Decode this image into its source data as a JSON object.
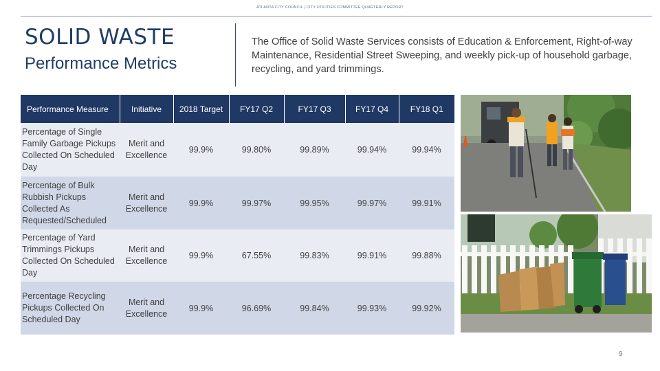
{
  "header": {
    "text": "ATLANTA CITY COUNCIL | CITY UTILITIES COMMITTEE QUARTERLY REPORT"
  },
  "title": "SOLID WASTE",
  "subtitle": "Performance Metrics",
  "description": "The Office of Solid Waste Services consists of Education & Enforcement, Right-of-way Maintenance, Residential Street Sweeping, and weekly pick-up of household garbage, recycling, and yard trimmings.",
  "table": {
    "columns": [
      "Performance Measure",
      "Initiative",
      "2018 Target",
      "FY17 Q2",
      "FY17 Q3",
      "FY17 Q4",
      "FY18 Q1"
    ],
    "rows": [
      {
        "measure": "Percentage of Single Family Garbage Pickups Collected On Scheduled Day",
        "initiative": "Merit and Excellence",
        "target": "99.9%",
        "fy17q2": "99.80%",
        "fy17q3": "99.89%",
        "fy17q4": "99.94%",
        "fy18q1": "99.94%"
      },
      {
        "measure": "Percentage of Bulk Rubbish Pickups Collected As Requested/Scheduled",
        "initiative": "Merit and Excellence",
        "target": "99.9%",
        "fy17q2": "99.97%",
        "fy17q3": "99.95%",
        "fy17q4": "99.97%",
        "fy18q1": "99.91%"
      },
      {
        "measure": "Percentage of Yard Trimmings Pickups Collected On Scheduled Day",
        "initiative": "Merit and Excellence",
        "target": "99.9%",
        "fy17q2": "67.55%",
        "fy17q3": "99.83%",
        "fy17q4": "99.91%",
        "fy18q1": "99.88%"
      },
      {
        "measure": "Percentage Recycling Pickups Collected On Scheduled Day",
        "initiative": "Merit and Excellence",
        "target": "99.9%",
        "fy17q2": "96.69%",
        "fy17q3": "99.84%",
        "fy17q4": "99.93%",
        "fy18q1": "99.92%"
      }
    ]
  },
  "photos": {
    "workers": "workers-photo",
    "bins": "bins-photo"
  },
  "page_number": "9"
}
